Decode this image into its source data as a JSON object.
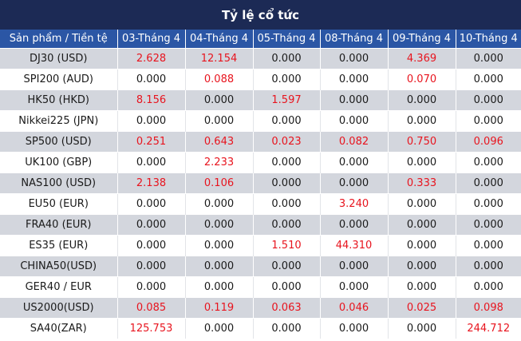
{
  "title": "Tỷ lệ cổ tức",
  "header": {
    "product": "Sản phẩm / Tiền tệ",
    "dates": [
      "03-Tháng 4",
      "04-Tháng 4",
      "05-Tháng 4",
      "08-Tháng 4",
      "09-Tháng 4",
      "10-Tháng 4"
    ]
  },
  "rows": [
    {
      "product": "DJ30 (USD)",
      "values": [
        "2.628",
        "12.154",
        "0.000",
        "0.000",
        "4.369",
        "0.000"
      ]
    },
    {
      "product": "SPI200 (AUD)",
      "values": [
        "0.000",
        "0.088",
        "0.000",
        "0.000",
        "0.070",
        "0.000"
      ]
    },
    {
      "product": "HK50 (HKD)",
      "values": [
        "8.156",
        "0.000",
        "1.597",
        "0.000",
        "0.000",
        "0.000"
      ]
    },
    {
      "product": "Nikkei225 (JPN)",
      "values": [
        "0.000",
        "0.000",
        "0.000",
        "0.000",
        "0.000",
        "0.000"
      ]
    },
    {
      "product": "SP500 (USD)",
      "values": [
        "0.251",
        "0.643",
        "0.023",
        "0.082",
        "0.750",
        "0.096"
      ]
    },
    {
      "product": "UK100 (GBP)",
      "values": [
        "0.000",
        "2.233",
        "0.000",
        "0.000",
        "0.000",
        "0.000"
      ]
    },
    {
      "product": "NAS100 (USD)",
      "values": [
        "2.138",
        "0.106",
        "0.000",
        "0.000",
        "0.333",
        "0.000"
      ]
    },
    {
      "product": "EU50 (EUR)",
      "values": [
        "0.000",
        "0.000",
        "0.000",
        "3.240",
        "0.000",
        "0.000"
      ]
    },
    {
      "product": "FRA40 (EUR)",
      "values": [
        "0.000",
        "0.000",
        "0.000",
        "0.000",
        "0.000",
        "0.000"
      ]
    },
    {
      "product": "ES35 (EUR)",
      "values": [
        "0.000",
        "0.000",
        "1.510",
        "44.310",
        "0.000",
        "0.000"
      ]
    },
    {
      "product": "CHINA50(USD)",
      "values": [
        "0.000",
        "0.000",
        "0.000",
        "0.000",
        "0.000",
        "0.000"
      ]
    },
    {
      "product": "GER40 / EUR",
      "values": [
        "0.000",
        "0.000",
        "0.000",
        "0.000",
        "0.000",
        "0.000"
      ]
    },
    {
      "product": "US2000(USD)",
      "values": [
        "0.085",
        "0.119",
        "0.063",
        "0.046",
        "0.025",
        "0.098"
      ]
    },
    {
      "product": "SA40(ZAR)",
      "values": [
        "125.753",
        "0.000",
        "0.000",
        "0.000",
        "0.000",
        "244.712"
      ]
    }
  ],
  "colors": {
    "title_bg": "#1c2a55",
    "header_bg": "#2b56a5",
    "row_shade": "#d3d6dd",
    "positive_value": "#e8141e",
    "zero_value": "#1a1a1a"
  }
}
